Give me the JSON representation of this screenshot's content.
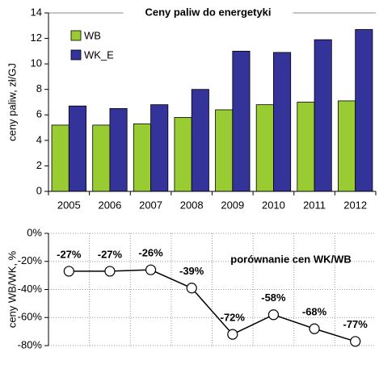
{
  "chart_data": [
    {
      "type": "bar",
      "title": "Ceny paliw do energetyki",
      "y_label": "ceny paliw, zł/GJ",
      "categories": [
        "2005",
        "2006",
        "2007",
        "2008",
        "2009",
        "2010",
        "2011",
        "2012"
      ],
      "series": [
        {
          "name": "WB",
          "color": "#99cc33",
          "values": [
            5.2,
            5.2,
            5.3,
            5.8,
            6.4,
            6.8,
            7.0,
            7.1
          ]
        },
        {
          "name": "WK_E",
          "color": "#333399",
          "values": [
            6.7,
            6.5,
            6.8,
            8.0,
            11.0,
            10.9,
            11.9,
            12.7
          ]
        }
      ],
      "ylim": [
        0,
        14
      ],
      "yticks": [
        0,
        2,
        4,
        6,
        8,
        10,
        12,
        14
      ],
      "legend": "upper-left"
    },
    {
      "type": "line",
      "title": "porównanie cen WK/WB",
      "y_label": "ceny WB/WK, %",
      "values": [
        -27,
        -27,
        -26,
        -39,
        -72,
        -58,
        -68,
        -77
      ],
      "value_labels": [
        "-27%",
        "-27%",
        "-26%",
        "-39%",
        "-72%",
        "-58%",
        "-68%",
        "-77%"
      ],
      "color": "#000000",
      "ylim": [
        -80,
        0
      ],
      "yticks": [
        {
          "value": 0,
          "label": "0%"
        },
        {
          "value": -20,
          "label": "-20%"
        },
        {
          "value": -40,
          "label": "-40%"
        },
        {
          "value": -60,
          "label": "-60%"
        },
        {
          "value": -80,
          "label": "-80%"
        }
      ],
      "grid": true
    }
  ]
}
